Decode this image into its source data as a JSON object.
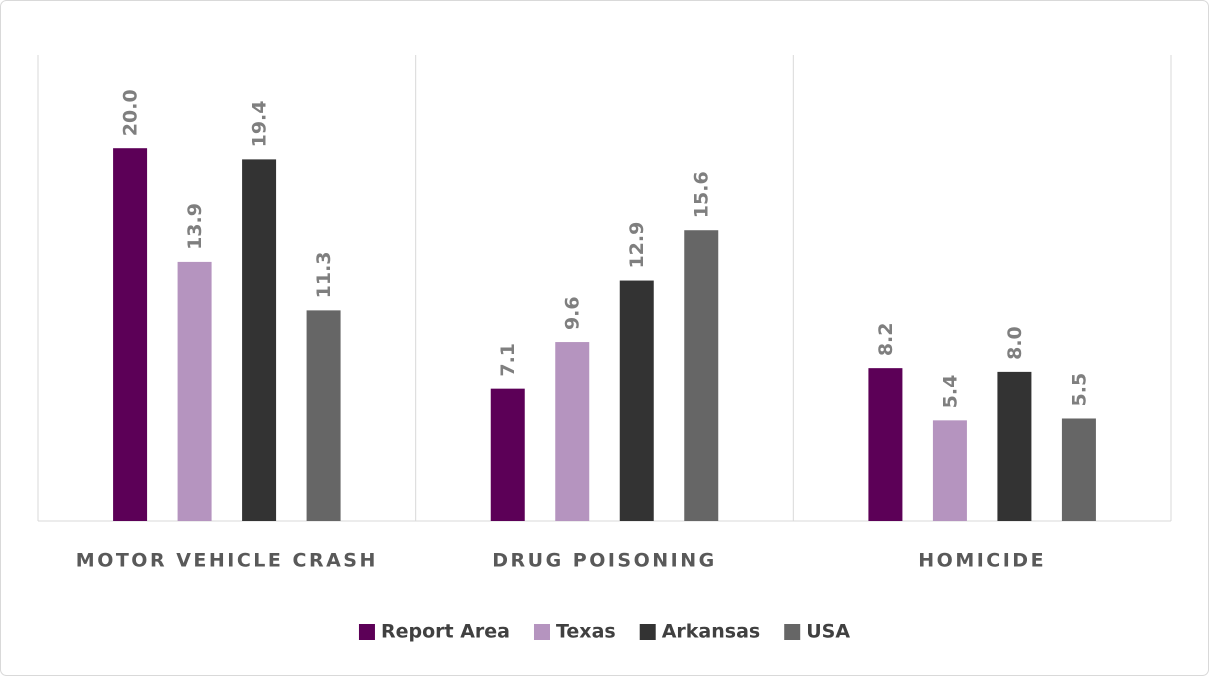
{
  "chart_data": {
    "type": "bar",
    "categories": [
      "MOTOR VEHICLE CRASH",
      "DRUG POISONING",
      "HOMICIDE"
    ],
    "series": [
      {
        "name": "Report Area",
        "color": "#5c0057",
        "values": [
          20.0,
          7.1,
          8.2
        ],
        "value_labels": [
          "20.0",
          "7.1",
          "8.2"
        ]
      },
      {
        "name": "Texas",
        "color": "#b594bf",
        "values": [
          13.9,
          9.6,
          5.4
        ],
        "value_labels": [
          "13.9",
          "9.6",
          "5.4"
        ]
      },
      {
        "name": "Arkansas",
        "color": "#333333",
        "values": [
          19.4,
          12.9,
          8.0
        ],
        "value_labels": [
          "19.4",
          "12.9",
          "8.0"
        ]
      },
      {
        "name": "USA",
        "color": "#666666",
        "values": [
          11.3,
          15.6,
          5.5
        ],
        "value_labels": [
          "11.3",
          "15.6",
          "5.5"
        ]
      }
    ],
    "ylim": [
      0,
      25
    ],
    "legend": "bottom"
  }
}
